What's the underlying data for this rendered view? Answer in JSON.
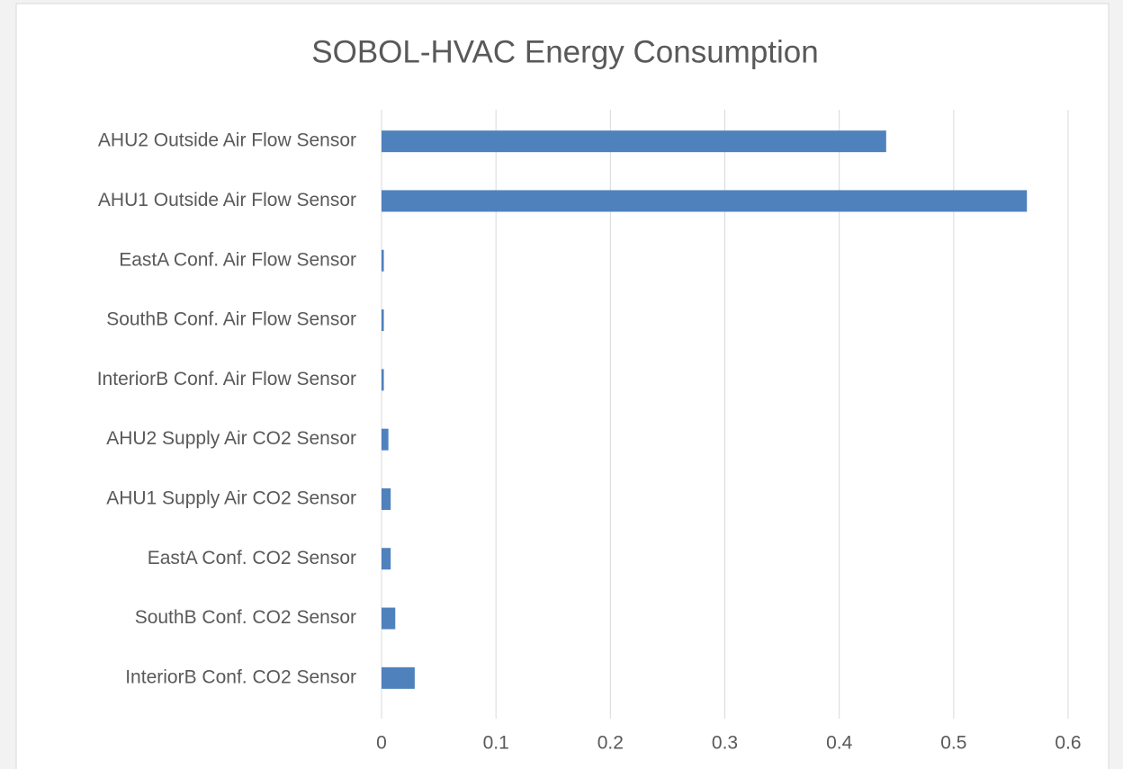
{
  "chart_data": {
    "type": "hbar",
    "title": "SOBOL-HVAC Energy Consumption",
    "categories": [
      "AHU2 Outside Air Flow Sensor",
      "AHU1 Outside Air Flow Sensor",
      "EastA Conf. Air Flow Sensor",
      "SouthB Conf. Air Flow Sensor",
      "InteriorB Conf. Air Flow Sensor",
      "AHU2 Supply Air CO2 Sensor",
      "AHU1 Supply Air CO2 Sensor",
      "EastA Conf. CO2 Sensor",
      "SouthB Conf. CO2 Sensor",
      "InteriorB Conf. CO2 Sensor"
    ],
    "values": [
      0.441,
      0.564,
      0.002,
      0.002,
      0.002,
      0.006,
      0.008,
      0.008,
      0.012,
      0.029
    ],
    "color": "#4f81bd",
    "xlim": [
      0,
      0.6
    ],
    "xticks": [
      0,
      0.1,
      0.2,
      0.3,
      0.4,
      0.5,
      0.6
    ],
    "grid": true
  }
}
